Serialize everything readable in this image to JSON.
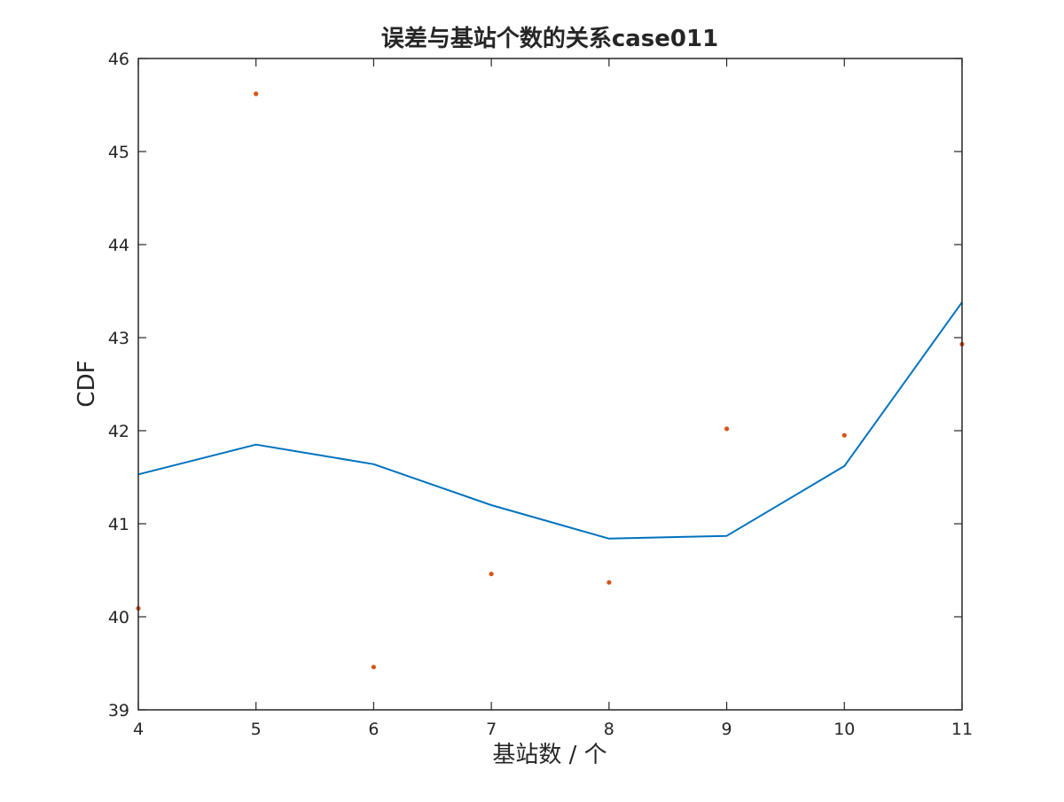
{
  "chart_data": {
    "type": "line",
    "title": "误差与基站个数的关系case011",
    "xlabel": "基站数 / 个",
    "ylabel": "CDF",
    "xlim": [
      4,
      11
    ],
    "ylim": [
      39,
      46
    ],
    "xticks": [
      "4",
      "5",
      "6",
      "7",
      "8",
      "9",
      "10",
      "11"
    ],
    "yticks": [
      "39",
      "40",
      "41",
      "42",
      "43",
      "44",
      "45",
      "46"
    ],
    "grid": false,
    "series": [
      {
        "kind": "line",
        "color": "#0072BD",
        "x": [
          4,
          5,
          6,
          7,
          8,
          9,
          10,
          11
        ],
        "y": [
          41.53,
          41.85,
          41.64,
          41.2,
          40.84,
          40.87,
          41.62,
          43.38
        ]
      },
      {
        "kind": "scatter",
        "color": "#D95319",
        "x": [
          4,
          5,
          6,
          7,
          8,
          9,
          10,
          11
        ],
        "y": [
          40.09,
          45.62,
          39.46,
          40.46,
          40.37,
          42.02,
          41.95,
          42.93
        ]
      }
    ]
  }
}
